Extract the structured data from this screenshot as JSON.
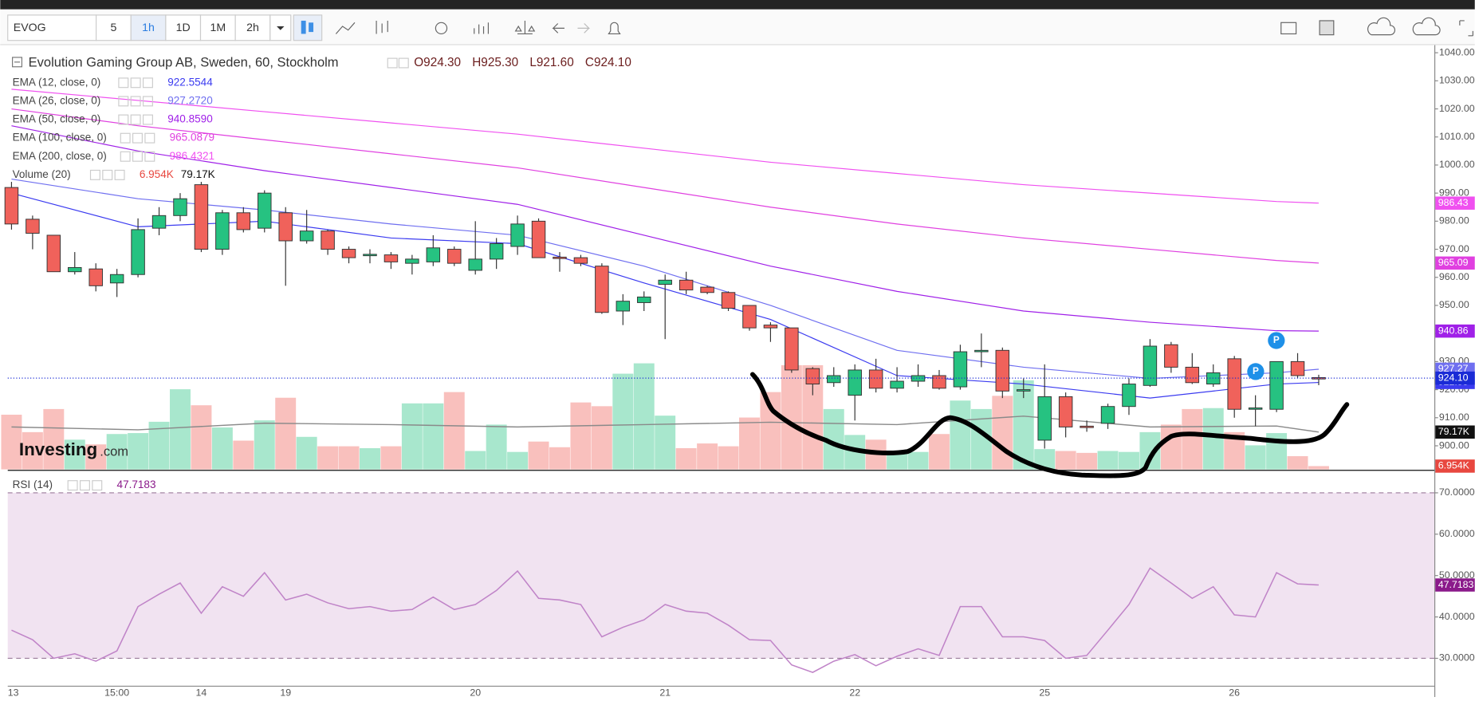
{
  "toolbar": {
    "symbol": "EVOG",
    "intervals": [
      "5",
      "1h",
      "1D",
      "1M",
      "2h"
    ]
  },
  "chart_data": [
    {
      "type": "candlestick",
      "title": "Evolution Gaming Group AB, Sweden, 60, Stockholm",
      "ohlc_labels": [
        "O924.30",
        "H925.30",
        "L921.60",
        "C924.10"
      ],
      "categories": [
        "13",
        null,
        null,
        null,
        null,
        "15:00",
        null,
        null,
        null,
        "14",
        null,
        null,
        null,
        "19",
        null,
        null,
        null,
        null,
        null,
        null,
        null,
        null,
        "20",
        null,
        null,
        null,
        null,
        null,
        null,
        null,
        null,
        "21",
        null,
        null,
        null,
        null,
        null,
        null,
        null,
        null,
        "22",
        null,
        null,
        null,
        null,
        null,
        null,
        null,
        null,
        "25",
        null,
        null,
        null,
        null,
        null,
        null,
        null,
        null,
        "26",
        null,
        null,
        null,
        null
      ],
      "open": [
        992,
        980.7,
        975,
        962,
        963,
        958,
        961,
        977.5,
        982,
        993,
        970,
        983,
        977.5,
        983,
        973,
        976.5,
        970,
        967.8,
        968,
        965,
        965.5,
        970,
        962.5,
        966.5,
        971,
        980,
        967.2,
        967,
        964,
        948,
        951,
        957.5,
        959,
        956.5,
        954.6,
        950,
        943,
        942,
        927.5,
        922.5,
        918,
        927,
        920.5,
        923,
        925,
        921,
        933.5,
        934,
        919.8,
        902,
        917.5,
        907,
        908,
        914,
        921.5,
        936,
        928,
        922,
        931,
        913,
        913,
        930,
        924.3
      ],
      "high": [
        994,
        982,
        975,
        969,
        965,
        963,
        981,
        985,
        990,
        994,
        984,
        985,
        991,
        985,
        984,
        977,
        971,
        970,
        969,
        968,
        975,
        971,
        980,
        974,
        982,
        981,
        969,
        968,
        965,
        954,
        955,
        961,
        962,
        957,
        955,
        950,
        944,
        942,
        928,
        928,
        929,
        931,
        928,
        929,
        927,
        936,
        940,
        935,
        924,
        929,
        919,
        909,
        915,
        924,
        938,
        937,
        933,
        929,
        932,
        918,
        930,
        933,
        925.3
      ],
      "low": [
        977,
        970,
        962,
        961,
        955,
        953,
        960,
        975,
        980,
        969,
        968,
        976,
        976,
        957,
        972,
        968,
        965,
        965,
        963,
        961,
        964,
        964,
        961,
        963,
        968,
        967,
        962,
        964,
        947,
        943,
        948,
        938,
        954,
        954,
        948,
        941,
        937,
        926,
        918,
        921,
        909,
        919,
        919,
        921,
        920,
        920,
        928,
        917,
        917,
        899,
        903,
        905,
        906,
        911,
        921,
        926,
        922,
        921,
        910,
        907,
        912,
        924,
        921.6
      ],
      "close": [
        979,
        975.7,
        962,
        963.5,
        957,
        961,
        977,
        982,
        988,
        970,
        983,
        977,
        990,
        973,
        976.5,
        970,
        967,
        968.2,
        965.5,
        966.5,
        970.5,
        965,
        966.5,
        972,
        979,
        967,
        966.8,
        965,
        947.5,
        951.5,
        953,
        959,
        955.5,
        954.6,
        949,
        942,
        942,
        927,
        922,
        925,
        927,
        920.5,
        923,
        925,
        920.5,
        933.5,
        934,
        919.5,
        920,
        917.5,
        906.7,
        906.5,
        914,
        922,
        935.5,
        928,
        922.5,
        926,
        913,
        913.5,
        930,
        925,
        924.1
      ],
      "up_color": "#26c281",
      "down_color": "#f0625b",
      "last_label": "924.10",
      "last_color": "#1a2bd6",
      "ylim": [
        891.6,
        1042.7
      ],
      "yticks": [
        {
          "value": 900,
          "label": "900.00"
        },
        {
          "value": 910,
          "label": "910.00"
        },
        {
          "value": 920,
          "label": "920.00"
        },
        {
          "value": 930,
          "label": "930.00"
        },
        {
          "value": 940,
          "label": "940.00"
        },
        {
          "value": 950,
          "label": "950.00"
        },
        {
          "value": 960,
          "label": "960.00"
        },
        {
          "value": 970,
          "label": "970.00"
        },
        {
          "value": 980,
          "label": "980.00"
        },
        {
          "value": 990,
          "label": "990.00"
        },
        {
          "value": 1000,
          "label": "1000.00"
        },
        {
          "value": 1010,
          "label": "1010.00"
        },
        {
          "value": 1020,
          "label": "1020.00"
        },
        {
          "value": 1030,
          "label": "1030.00"
        },
        {
          "value": 1040,
          "label": "1040.00"
        }
      ],
      "overlays": [
        {
          "name": "EMA (12, close, 0)",
          "legend_value": "922.5544",
          "last_label": "922.55",
          "color": "#3b3bf0",
          "x": [
            0,
            6,
            12,
            18,
            24,
            30,
            36,
            42,
            48,
            54,
            60,
            62
          ],
          "values": [
            990,
            978,
            980,
            974,
            972,
            958,
            945,
            925,
            922,
            917,
            922,
            922.5544
          ]
        },
        {
          "name": "EMA (26, close, 0)",
          "legend_value": "927.2720",
          "last_label": "927.27",
          "color": "#6f6ff0",
          "x": [
            0,
            6,
            12,
            18,
            24,
            30,
            36,
            42,
            48,
            54,
            60,
            62
          ],
          "values": [
            995,
            988,
            984,
            979,
            975,
            964,
            950,
            934,
            928,
            924,
            926,
            927.272
          ]
        },
        {
          "name": "EMA (50, close, 0)",
          "legend_value": "940.8590",
          "last_label": "940.86",
          "color": "#a020e8",
          "x": [
            0,
            6,
            12,
            18,
            24,
            30,
            36,
            42,
            48,
            54,
            60,
            62
          ],
          "values": [
            1014,
            1005,
            998,
            992,
            986,
            975,
            964,
            955,
            948,
            944,
            941,
            940.859
          ]
        },
        {
          "name": "EMA (100, close, 0)",
          "legend_value": "965.0879",
          "last_label": "965.09",
          "color": "#e040e0",
          "x": [
            0,
            6,
            12,
            18,
            24,
            30,
            36,
            42,
            48,
            54,
            60,
            62
          ],
          "values": [
            1020,
            1014,
            1009,
            1004,
            999,
            992,
            985,
            979,
            974,
            970,
            966,
            965.0879
          ]
        },
        {
          "name": "EMA (200, close, 0)",
          "legend_value": "986.4321",
          "last_label": "986.43",
          "color": "#f050f0",
          "x": [
            0,
            6,
            12,
            18,
            24,
            30,
            36,
            42,
            48,
            54,
            60,
            62
          ],
          "values": [
            1027,
            1023,
            1019,
            1015,
            1011,
            1006,
            1001,
            997,
            993,
            990,
            987,
            986.4321
          ]
        }
      ],
      "volume": {
        "name": "Volume (20)",
        "legend_value": "6.954K",
        "last_label": "6.954K",
        "color": "#e8473f",
        "vlim": [
          0,
          900
        ],
        "values": [
          116,
          79,
          128,
          63,
          53,
          75,
          77,
          101,
          170,
          136,
          89,
          61,
          104,
          152,
          69,
          49,
          49,
          45,
          49,
          140,
          140,
          164,
          39,
          95,
          37,
          59,
          47,
          142,
          134,
          203,
          225,
          114,
          45,
          55,
          49,
          110,
          164,
          221,
          221,
          128,
          73,
          63,
          35,
          37,
          75,
          146,
          128,
          156,
          189,
          43,
          39,
          35,
          39,
          37,
          79,
          95,
          128,
          130,
          79,
          51,
          77,
          28,
          6.954
        ],
        "ma": {
          "legend_value": "79.17K",
          "last_label": "79.17K",
          "color": "#8a8a8a",
          "x": [
            0,
            6,
            12,
            18,
            24,
            30,
            36,
            42,
            48,
            54,
            60,
            62
          ],
          "values": [
            90,
            84,
            98,
            95,
            90,
            95,
            100,
            95,
            113,
            90,
            92,
            79.17
          ]
        }
      }
    },
    {
      "type": "line",
      "name": "RSI (14)",
      "legend_value": "47.7183",
      "color": "#c084c8",
      "values": [
        36.8,
        34.5,
        30,
        31.1,
        29.3,
        31.8,
        42.5,
        45.5,
        48.2,
        40.9,
        47.3,
        45,
        50.7,
        44.1,
        45.5,
        43.4,
        42,
        42.5,
        41.4,
        41.8,
        44.8,
        41.8,
        43,
        46.4,
        51.1,
        44.5,
        44.1,
        43,
        35.2,
        37.5,
        39.3,
        43,
        41.4,
        40.9,
        38,
        34.5,
        34.3,
        28.4,
        26.6,
        29.3,
        30.9,
        28.2,
        30.5,
        32.3,
        30.7,
        42.5,
        42.5,
        35.2,
        35.2,
        34.3,
        30,
        30.7,
        36.8,
        43,
        51.8,
        48.2,
        44.5,
        47.3,
        40.5,
        40,
        50.7,
        48,
        47.7183
      ],
      "ylim": [
        23.6,
        74.3
      ],
      "band": [
        30,
        70
      ],
      "yticks": [
        {
          "value": 30,
          "label": "30.0000"
        },
        {
          "value": 40,
          "label": "40.0000"
        },
        {
          "value": 50,
          "label": "50.0000"
        },
        {
          "value": 60,
          "label": "60.0000"
        },
        {
          "value": 70,
          "label": "70.0000"
        }
      ]
    }
  ]
}
